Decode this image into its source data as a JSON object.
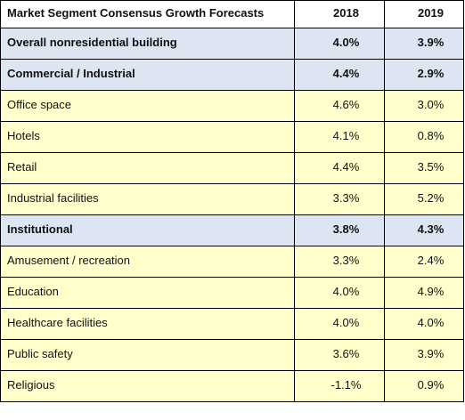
{
  "table": {
    "header": {
      "segment": "Market Segment Consensus Growth Forecasts",
      "year1": "2018",
      "year2": "2019"
    },
    "rows": [
      {
        "segment": "Overall nonresidential building",
        "y2018": "4.0%",
        "y2019": "3.9%",
        "group": true
      },
      {
        "segment": "Commercial / Industrial",
        "y2018": "4.4%",
        "y2019": "2.9%",
        "group": true
      },
      {
        "segment": "Office space",
        "y2018": "4.6%",
        "y2019": "3.0%",
        "group": false
      },
      {
        "segment": "Hotels",
        "y2018": "4.1%",
        "y2019": "0.8%",
        "group": false
      },
      {
        "segment": "Retail",
        "y2018": "4.4%",
        "y2019": "3.5%",
        "group": false
      },
      {
        "segment": "Industrial facilities",
        "y2018": "3.3%",
        "y2019": "5.2%",
        "group": false
      },
      {
        "segment": "Institutional",
        "y2018": "3.8%",
        "y2019": "4.3%",
        "group": true
      },
      {
        "segment": "Amusement / recreation",
        "y2018": "3.3%",
        "y2019": "2.4%",
        "group": false
      },
      {
        "segment": "Education",
        "y2018": "4.0%",
        "y2019": "4.9%",
        "group": false
      },
      {
        "segment": "Healthcare facilities",
        "y2018": "4.0%",
        "y2019": "4.0%",
        "group": false
      },
      {
        "segment": "Public safety",
        "y2018": "3.6%",
        "y2019": "3.9%",
        "group": false
      },
      {
        "segment": "Religious",
        "y2018": "-1.1%",
        "y2019": "0.9%",
        "group": false
      }
    ],
    "colors": {
      "group_fill": "#dce5f1",
      "item_fill": "#ffffcc",
      "border": "#000000"
    }
  }
}
